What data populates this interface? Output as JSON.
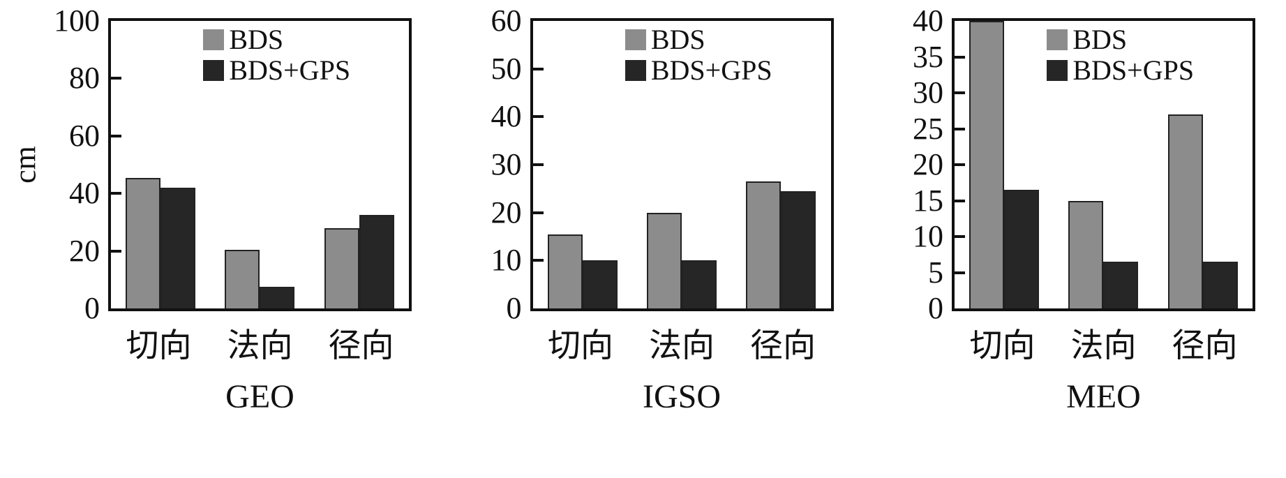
{
  "colors": {
    "bds": "#8c8c8c",
    "bds_gps": "#262626",
    "axis": "#111111"
  },
  "chart_data": [
    {
      "type": "bar",
      "title": "GEO",
      "ylabel": "cm",
      "categories": [
        "切向",
        "法向",
        "径向"
      ],
      "ylim": [
        0,
        100
      ],
      "yticks": [
        0,
        20,
        40,
        60,
        80,
        100
      ],
      "legend": [
        "BDS",
        "BDS+GPS"
      ],
      "legend_position": "upper center",
      "grid": false,
      "series": [
        {
          "name": "BDS",
          "values": [
            45.5,
            20.5,
            28
          ]
        },
        {
          "name": "BDS+GPS",
          "values": [
            42,
            7.5,
            32.5
          ]
        }
      ]
    },
    {
      "type": "bar",
      "title": "IGSO",
      "ylabel": "",
      "categories": [
        "切向",
        "法向",
        "径向"
      ],
      "ylim": [
        0,
        60
      ],
      "yticks": [
        0,
        10,
        20,
        30,
        40,
        50,
        60
      ],
      "legend": [
        "BDS",
        "BDS+GPS"
      ],
      "legend_position": "upper center",
      "grid": false,
      "series": [
        {
          "name": "BDS",
          "values": [
            15.5,
            20,
            26.5
          ]
        },
        {
          "name": "BDS+GPS",
          "values": [
            10,
            10,
            24.5
          ]
        }
      ]
    },
    {
      "type": "bar",
      "title": "MEO",
      "ylabel": "",
      "categories": [
        "切向",
        "法向",
        "径向"
      ],
      "ylim": [
        0,
        40
      ],
      "yticks": [
        0,
        5,
        10,
        15,
        20,
        25,
        30,
        35,
        40
      ],
      "legend": [
        "BDS",
        "BDS+GPS"
      ],
      "legend_position": "upper center",
      "grid": false,
      "series": [
        {
          "name": "BDS",
          "values": [
            40,
            15,
            27
          ]
        },
        {
          "name": "BDS+GPS",
          "values": [
            16.5,
            6.5,
            6.5
          ]
        }
      ]
    }
  ]
}
